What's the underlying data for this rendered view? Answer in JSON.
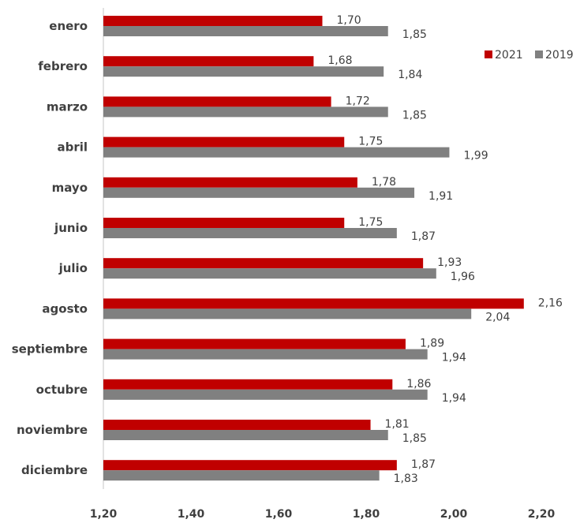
{
  "chart_data": {
    "type": "bar",
    "orientation": "horizontal",
    "categories": [
      "enero",
      "febrero",
      "marzo",
      "abril",
      "mayo",
      "junio",
      "julio",
      "agosto",
      "septiembre",
      "octubre",
      "noviembre",
      "diciembre"
    ],
    "series": [
      {
        "name": "2021",
        "color": "#c00000",
        "values": [
          1.7,
          1.68,
          1.72,
          1.75,
          1.78,
          1.75,
          1.93,
          2.16,
          1.89,
          1.86,
          1.81,
          1.87
        ],
        "labels": [
          "1,70",
          "1,68",
          "1,72",
          "1,75",
          "1,78",
          "1,75",
          "1,93",
          "2,16",
          "1,89",
          "1,86",
          "1,81",
          "1,87"
        ]
      },
      {
        "name": "2019",
        "color": "#808080",
        "values": [
          1.85,
          1.84,
          1.85,
          1.99,
          1.91,
          1.87,
          1.96,
          2.04,
          1.94,
          1.94,
          1.85,
          1.83
        ],
        "labels": [
          "1,85",
          "1,84",
          "1,85",
          "1,99",
          "1,91",
          "1,87",
          "1,96",
          "2,04",
          "1,94",
          "1,94",
          "1,85",
          "1,83"
        ]
      }
    ],
    "xlim": [
      1.2,
      2.2
    ],
    "xticks": [
      1.2,
      1.4,
      1.6,
      1.8,
      2.0,
      2.2
    ],
    "xtick_labels": [
      "1,20",
      "1,40",
      "1,60",
      "1,80",
      "2,00",
      "2,20"
    ],
    "title": "",
    "xlabel": "",
    "ylabel": "",
    "legend_position": "top-right",
    "grid": false
  }
}
